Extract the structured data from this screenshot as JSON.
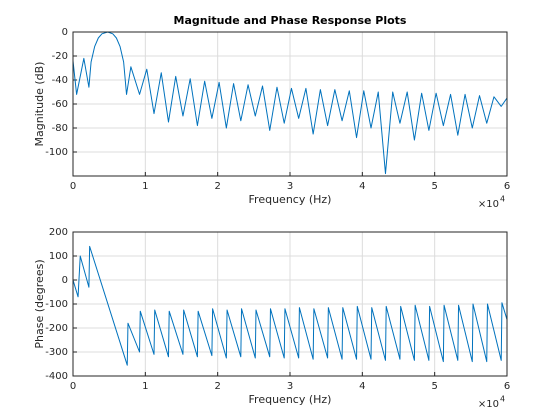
{
  "chart_data": [
    {
      "type": "line",
      "title": "Magnitude and Phase Response Plots",
      "xlabel": "Frequency (Hz)",
      "ylabel": "Magnitude (dB)",
      "x_exponent": {
        "base": "×10",
        "power": "4"
      },
      "color": "#0072bd",
      "grid": true,
      "xlim": [
        0,
        6
      ],
      "xticks": [
        0,
        1,
        2,
        3,
        4,
        5,
        6
      ],
      "ylim": [
        -120,
        0
      ],
      "yticks": [
        -100,
        -80,
        -60,
        -40,
        -20,
        0
      ],
      "x": [
        0,
        0.05,
        0.15,
        0.22,
        0.25,
        0.3,
        0.35,
        0.4,
        0.48,
        0.55,
        0.6,
        0.65,
        0.7,
        0.74,
        0.8,
        0.92,
        1.02,
        1.12,
        1.22,
        1.32,
        1.42,
        1.52,
        1.62,
        1.72,
        1.82,
        1.92,
        2.02,
        2.12,
        2.22,
        2.32,
        2.42,
        2.52,
        2.62,
        2.72,
        2.82,
        2.92,
        3.02,
        3.12,
        3.22,
        3.32,
        3.42,
        3.52,
        3.62,
        3.72,
        3.82,
        3.92,
        4.02,
        4.12,
        4.22,
        4.32,
        4.42,
        4.52,
        4.62,
        4.72,
        4.82,
        4.92,
        5.02,
        5.12,
        5.22,
        5.32,
        5.42,
        5.52,
        5.62,
        5.72,
        5.82,
        5.92,
        6
      ],
      "values": [
        -24,
        -52,
        -22,
        -46,
        -25,
        -12,
        -5,
        -1.5,
        0,
        -1.5,
        -5,
        -12,
        -25,
        -52,
        -29,
        -52,
        -31,
        -68,
        -34,
        -75,
        -37,
        -70,
        -39,
        -78,
        -41,
        -72,
        -42,
        -80,
        -43,
        -74,
        -44,
        -70,
        -45,
        -82,
        -46,
        -76,
        -47,
        -72,
        -47,
        -85,
        -48,
        -78,
        -48,
        -74,
        -49,
        -88,
        -49,
        -80,
        -50,
        -118,
        -50,
        -76,
        -50,
        -90,
        -51,
        -82,
        -51,
        -78,
        -52,
        -86,
        -52,
        -80,
        -53,
        -76,
        -54,
        -62,
        -55
      ]
    },
    {
      "type": "line",
      "xlabel": "Frequency (Hz)",
      "ylabel": "Phase (degrees)",
      "x_exponent": {
        "base": "×10",
        "power": "4"
      },
      "color": "#0072bd",
      "grid": true,
      "xlim": [
        0,
        6
      ],
      "xticks": [
        0,
        1,
        2,
        3,
        4,
        5,
        6
      ],
      "ylim": [
        -400,
        200
      ],
      "yticks": [
        -400,
        -300,
        -200,
        -100,
        0,
        100,
        200
      ],
      "x": [
        0,
        0.07,
        0.1,
        0.22,
        0.23,
        0.75,
        0.76,
        0.92,
        0.93,
        1.12,
        1.13,
        1.32,
        1.33,
        1.52,
        1.53,
        1.72,
        1.73,
        1.92,
        1.93,
        2.12,
        2.13,
        2.32,
        2.33,
        2.52,
        2.53,
        2.72,
        2.73,
        2.92,
        2.93,
        3.12,
        3.13,
        3.32,
        3.33,
        3.52,
        3.53,
        3.72,
        3.73,
        3.92,
        3.93,
        4.12,
        4.13,
        4.32,
        4.33,
        4.52,
        4.53,
        4.72,
        4.73,
        4.92,
        4.93,
        5.12,
        5.13,
        5.32,
        5.33,
        5.52,
        5.53,
        5.72,
        5.73,
        5.92,
        5.93,
        6
      ],
      "values": [
        0,
        -70,
        100,
        -30,
        140,
        -355,
        -180,
        -300,
        -130,
        -310,
        -125,
        -320,
        -130,
        -310,
        -125,
        -320,
        -130,
        -315,
        -120,
        -325,
        -125,
        -320,
        -120,
        -325,
        -125,
        -320,
        -120,
        -325,
        -120,
        -325,
        -115,
        -330,
        -120,
        -325,
        -115,
        -330,
        -115,
        -330,
        -110,
        -330,
        -115,
        -335,
        -110,
        -330,
        -110,
        -335,
        -105,
        -335,
        -110,
        -340,
        -105,
        -335,
        -105,
        -340,
        -100,
        -340,
        -100,
        -335,
        -95,
        -165
      ]
    }
  ]
}
